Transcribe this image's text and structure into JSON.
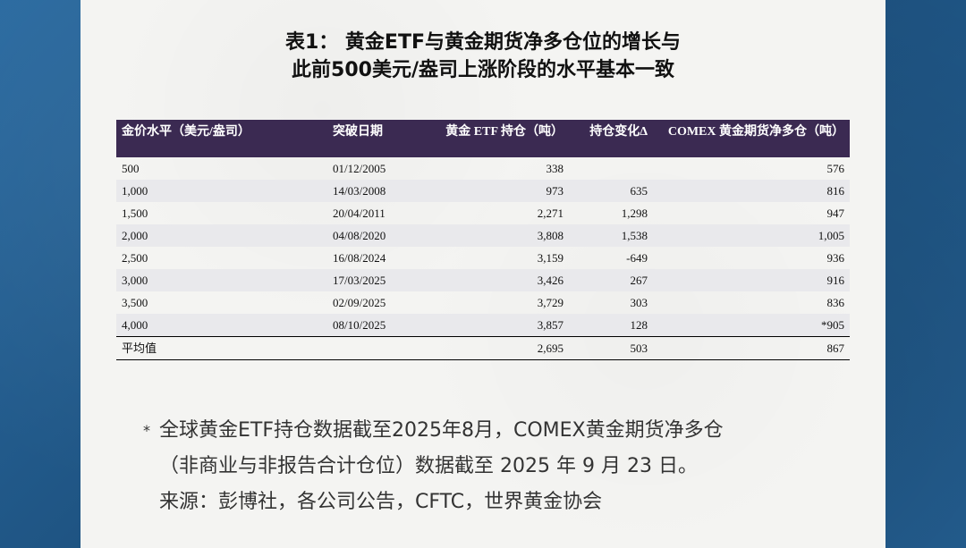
{
  "title": {
    "line1": "表1： 黄金ETF与黄金期货净多仓位的增长与",
    "line2": "此前500美元/盎司上涨阶段的水平基本一致"
  },
  "table": {
    "headers": {
      "price_level": "金价水平（美元/盎司）",
      "break_date": "突破日期",
      "etf_holdings": "黄金 ETF 持仓（吨）",
      "holding_change": "持仓变化Δ",
      "comex_net_long": "COMEX 黄金期货净多仓（吨）"
    },
    "rows": [
      {
        "price": "500",
        "date": "01/12/2005",
        "etf": "338",
        "change": "",
        "comex": "576"
      },
      {
        "price": "1,000",
        "date": "14/03/2008",
        "etf": "973",
        "change": "635",
        "comex": "816"
      },
      {
        "price": "1,500",
        "date": "20/04/2011",
        "etf": "2,271",
        "change": "1,298",
        "comex": "947"
      },
      {
        "price": "2,000",
        "date": "04/08/2020",
        "etf": "3,808",
        "change": "1,538",
        "comex": "1,005"
      },
      {
        "price": "2,500",
        "date": "16/08/2024",
        "etf": "3,159",
        "change": "-649",
        "comex": "936"
      },
      {
        "price": "3,000",
        "date": "17/03/2025",
        "etf": "3,426",
        "change": "267",
        "comex": "916"
      },
      {
        "price": "3,500",
        "date": "02/09/2025",
        "etf": "3,729",
        "change": "303",
        "comex": "836"
      },
      {
        "price": "4,000",
        "date": "08/10/2025",
        "etf": "3,857",
        "change": "128",
        "comex": "*905"
      }
    ],
    "average": {
      "label": "平均值",
      "etf": "2,695",
      "change": "503",
      "comex": "867"
    }
  },
  "notes": {
    "star": "*",
    "line1": "全球黄金ETF持仓数据截至2025年8月，COMEX黄金期货净多仓",
    "line2": "（非商业与非报告合计仓位）数据截至 2025 年 9 月 23 日。",
    "line3": "来源：彭博社，各公司公告，CFTC，世界黄金协会"
  },
  "colors": {
    "header_bg": "#3b2a52",
    "row_alt": "#e9e9ec",
    "background": "#1f5a8a"
  }
}
